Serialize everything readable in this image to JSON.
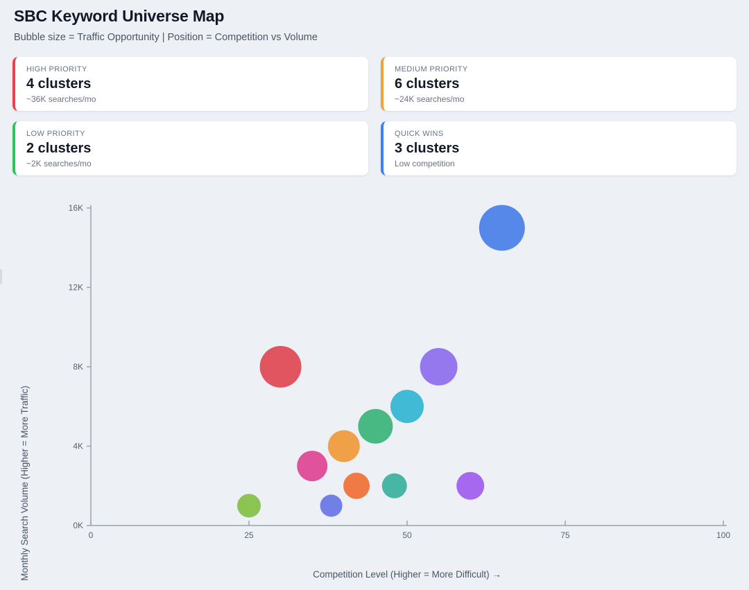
{
  "page": {
    "title": "SBC Keyword Universe Map",
    "subtitle": "Bubble size = Traffic Opportunity | Position = Competition vs Volume"
  },
  "cards": [
    {
      "label": "HIGH PRIORITY",
      "value": "4 clusters",
      "sub": "~36K searches/mo",
      "accent": "#ee4150"
    },
    {
      "label": "MEDIUM PRIORITY",
      "value": "6 clusters",
      "sub": "~24K searches/mo",
      "accent": "#eba33c"
    },
    {
      "label": "LOW PRIORITY",
      "value": "2 clusters",
      "sub": "~2K searches/mo",
      "accent": "#2ec45a"
    },
    {
      "label": "QUICK WINS",
      "value": "3 clusters",
      "sub": "Low competition",
      "accent": "#3b82f6"
    }
  ],
  "chart_data": {
    "type": "scatter",
    "title": "",
    "xlabel": "Competition Level (Higher = More Difficult) →",
    "ylabel": "Monthly Search Volume (Higher = More Traffic)",
    "xlim": [
      0,
      100
    ],
    "ylim": [
      0,
      16000
    ],
    "x_ticks": [
      0,
      25,
      50,
      75,
      100
    ],
    "y_ticks": [
      {
        "value": 0,
        "label": "0K"
      },
      {
        "value": 4000,
        "label": "4K"
      },
      {
        "value": 8000,
        "label": "8K"
      },
      {
        "value": 12000,
        "label": "12K"
      },
      {
        "value": 16000,
        "label": "16K"
      }
    ],
    "grid": false,
    "legend": "none",
    "points": [
      {
        "x": 65,
        "y": 15000,
        "r": 33,
        "color": "#5588e8"
      },
      {
        "x": 30,
        "y": 8000,
        "r": 30,
        "color": "#e15560"
      },
      {
        "x": 55,
        "y": 8000,
        "r": 27,
        "color": "#9678ee"
      },
      {
        "x": 50,
        "y": 6000,
        "r": 24,
        "color": "#41bad6"
      },
      {
        "x": 45,
        "y": 5000,
        "r": 25,
        "color": "#48b983"
      },
      {
        "x": 40,
        "y": 4000,
        "r": 23,
        "color": "#f0a148"
      },
      {
        "x": 35,
        "y": 3000,
        "r": 22,
        "color": "#e0529c"
      },
      {
        "x": 42,
        "y": 2000,
        "r": 19,
        "color": "#ef7a45"
      },
      {
        "x": 48,
        "y": 2000,
        "r": 18,
        "color": "#48b6a4"
      },
      {
        "x": 60,
        "y": 2000,
        "r": 20,
        "color": "#a568ef"
      },
      {
        "x": 38,
        "y": 1000,
        "r": 16,
        "color": "#727fe6"
      },
      {
        "x": 25,
        "y": 1000,
        "r": 17,
        "color": "#8cc454"
      }
    ],
    "axis_color": "#9aa3ad",
    "tick_label_color": "#5b6169",
    "axis_label_color": "#4b5563"
  }
}
